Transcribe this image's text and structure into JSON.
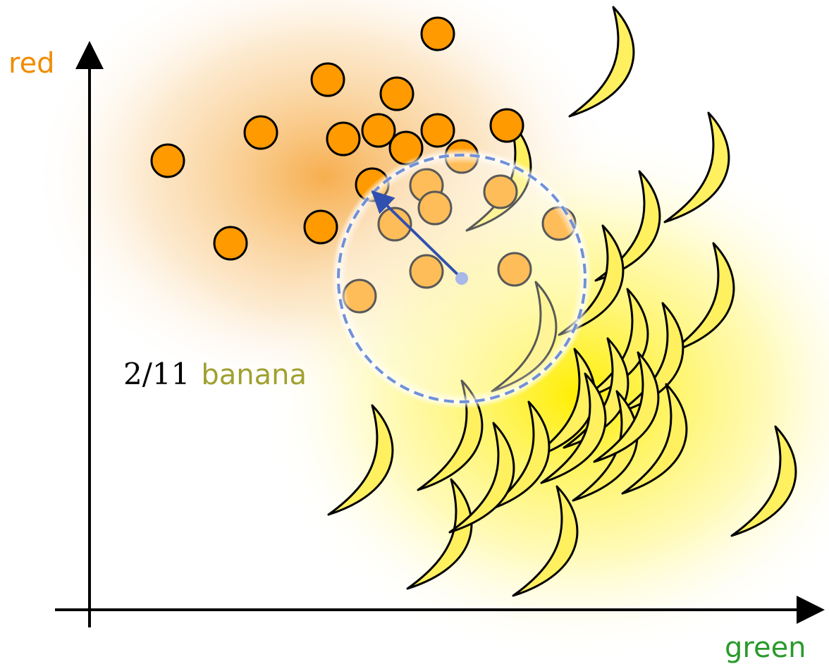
{
  "axes": {
    "y_label": "red",
    "x_label": "green"
  },
  "annotation": {
    "fraction": "2/11",
    "label": "banana"
  }
}
